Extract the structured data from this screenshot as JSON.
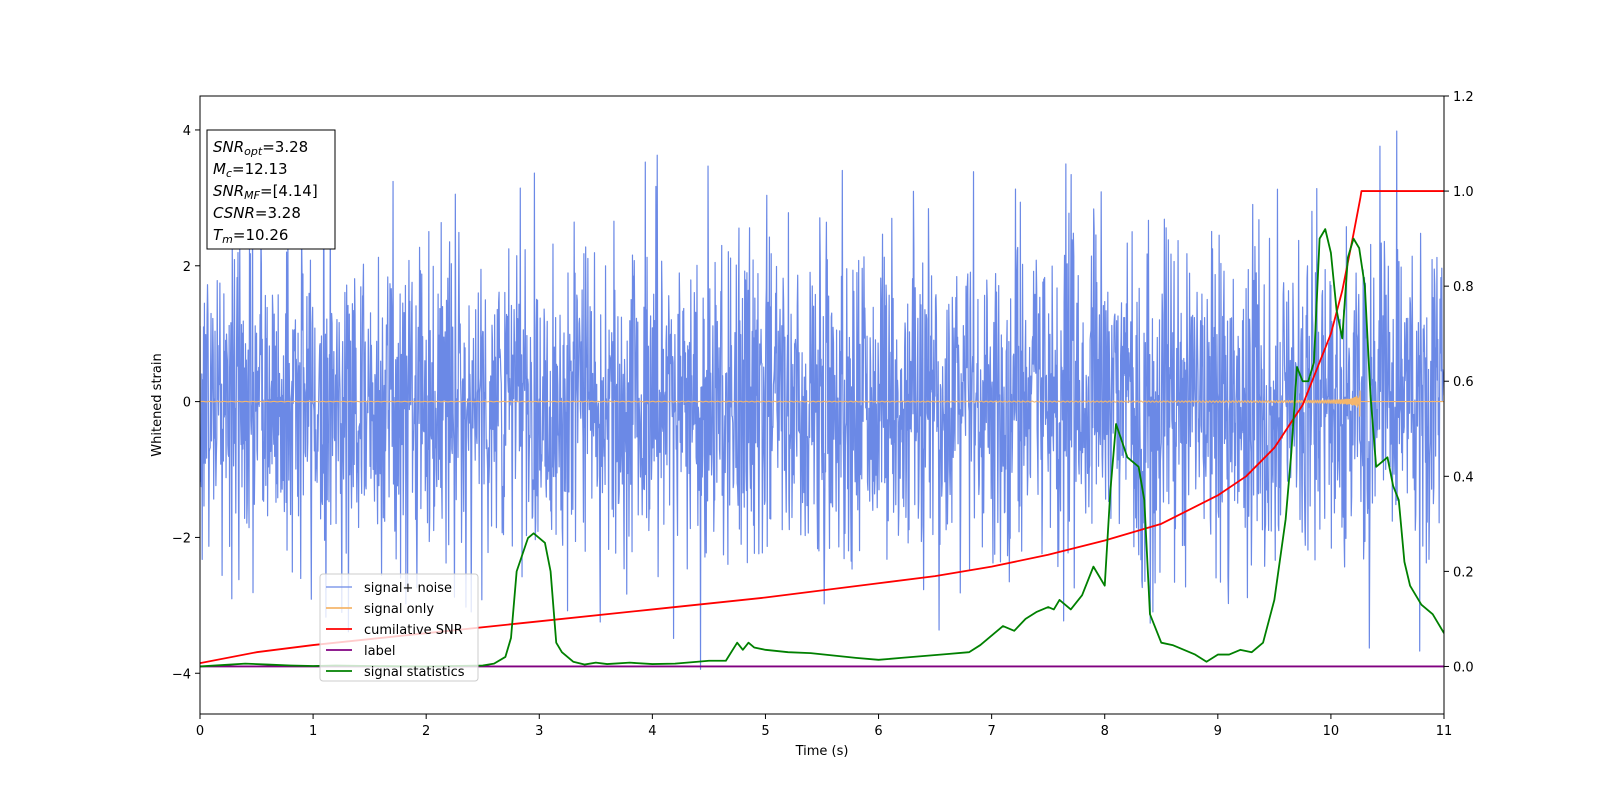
{
  "chart_data": {
    "type": "line",
    "xlabel": "Time (s)",
    "ylabel": "Whitened strain",
    "y2label": "",
    "xlim": [
      0,
      11
    ],
    "ylim": [
      -4.6,
      4.5
    ],
    "y2lim": [
      -0.1,
      1.2
    ],
    "x_ticks": [
      0,
      1,
      2,
      3,
      4,
      5,
      6,
      7,
      8,
      9,
      10,
      11
    ],
    "y_ticks": [
      -4,
      -2,
      0,
      2,
      4
    ],
    "y2_ticks": [
      0.0,
      0.2,
      0.4,
      0.6,
      0.8,
      1.0,
      1.2
    ],
    "y_tick_labels": [
      "−4",
      "−2",
      "0",
      "2",
      "4"
    ],
    "y2_tick_labels": [
      "0.0",
      "0.2",
      "0.4",
      "0.6",
      "0.8",
      "1.0",
      "1.2"
    ],
    "annotation": [
      {
        "symbol": "SNR",
        "sub": "opt",
        "value": "=3.28"
      },
      {
        "symbol": "M",
        "sub": "c",
        "value": "=12.13"
      },
      {
        "symbol": "SNR",
        "sub": "MF",
        "value": "=[4.14]"
      },
      {
        "symbol": "CSNR",
        "sub": "",
        "value": "=3.28"
      },
      {
        "symbol": "T",
        "sub": "m",
        "value": "=10.26"
      }
    ],
    "legend": {
      "placement": "lower-left",
      "entries": [
        {
          "label": "signal+ noise",
          "color": "#6b89e6"
        },
        {
          "label": "signal only",
          "color": "#f5b66b"
        },
        {
          "label": "cumilative SNR",
          "color": "#ff0000"
        },
        {
          "label": "label",
          "color": "#800080"
        },
        {
          "label": "signal statistics",
          "color": "#008000"
        }
      ]
    },
    "series": [
      {
        "name": "signal+ noise",
        "axis": "left",
        "color": "#6b89e6",
        "kind": "noise",
        "sampling_hz": 256,
        "amplitude_std": 1.2,
        "peak_max": 4.1,
        "peak_min": -4.15
      },
      {
        "name": "signal only",
        "axis": "left",
        "color": "#f5b66b",
        "kind": "chirp",
        "merger_time": 10.26,
        "peak_amplitude": 0.55,
        "trough_amplitude": -0.7
      },
      {
        "name": "cumilative SNR",
        "axis": "right",
        "color": "#ff0000",
        "x": [
          0,
          0.5,
          1,
          2,
          3,
          4,
          5,
          6,
          6.5,
          7,
          7.5,
          8,
          8.5,
          9,
          9.25,
          9.5,
          9.75,
          10,
          10.1,
          10.2,
          10.26,
          10.27,
          11
        ],
        "y": [
          0.007,
          0.03,
          0.045,
          0.07,
          0.095,
          0.12,
          0.145,
          0.175,
          0.19,
          0.21,
          0.235,
          0.265,
          0.3,
          0.36,
          0.4,
          0.46,
          0.55,
          0.7,
          0.79,
          0.91,
          0.985,
          1.0,
          1.0
        ]
      },
      {
        "name": "label",
        "axis": "right",
        "color": "#800080",
        "x": [
          0,
          11
        ],
        "y": [
          0.0,
          0.0
        ]
      },
      {
        "name": "signal statistics",
        "axis": "right",
        "color": "#008000",
        "x": [
          0,
          0.2,
          0.4,
          0.6,
          0.8,
          1.0,
          1.2,
          1.5,
          2.0,
          2.5,
          2.6,
          2.7,
          2.75,
          2.8,
          2.9,
          2.95,
          3.0,
          3.05,
          3.1,
          3.15,
          3.2,
          3.3,
          3.4,
          3.5,
          3.6,
          3.8,
          4.0,
          4.2,
          4.4,
          4.5,
          4.65,
          4.75,
          4.8,
          4.85,
          4.9,
          5.0,
          5.2,
          5.4,
          5.6,
          5.8,
          6.0,
          6.2,
          6.4,
          6.6,
          6.8,
          6.9,
          7.0,
          7.1,
          7.2,
          7.3,
          7.4,
          7.5,
          7.55,
          7.6,
          7.7,
          7.8,
          7.9,
          7.95,
          8.0,
          8.05,
          8.1,
          8.2,
          8.3,
          8.35,
          8.4,
          8.5,
          8.6,
          8.7,
          8.8,
          8.9,
          9.0,
          9.1,
          9.2,
          9.3,
          9.4,
          9.5,
          9.6,
          9.65,
          9.7,
          9.75,
          9.8,
          9.85,
          9.9,
          9.95,
          10.0,
          10.05,
          10.1,
          10.15,
          10.2,
          10.25,
          10.3,
          10.35,
          10.4,
          10.45,
          10.5,
          10.55,
          10.6,
          10.65,
          10.7,
          10.8,
          10.9,
          11.0
        ],
        "y": [
          0.0,
          0.003,
          0.006,
          0.004,
          0.002,
          0.001,
          0.002,
          0.001,
          0.0,
          0.002,
          0.006,
          0.02,
          0.06,
          0.2,
          0.27,
          0.28,
          0.27,
          0.26,
          0.2,
          0.05,
          0.03,
          0.01,
          0.004,
          0.008,
          0.005,
          0.008,
          0.005,
          0.006,
          0.01,
          0.012,
          0.012,
          0.05,
          0.035,
          0.05,
          0.04,
          0.035,
          0.03,
          0.028,
          0.023,
          0.018,
          0.014,
          0.018,
          0.022,
          0.026,
          0.03,
          0.045,
          0.065,
          0.085,
          0.075,
          0.1,
          0.115,
          0.125,
          0.12,
          0.14,
          0.12,
          0.15,
          0.21,
          0.19,
          0.17,
          0.37,
          0.51,
          0.44,
          0.42,
          0.35,
          0.11,
          0.05,
          0.045,
          0.035,
          0.025,
          0.01,
          0.025,
          0.025,
          0.035,
          0.03,
          0.05,
          0.14,
          0.31,
          0.45,
          0.63,
          0.6,
          0.6,
          0.64,
          0.9,
          0.92,
          0.87,
          0.75,
          0.69,
          0.86,
          0.9,
          0.88,
          0.8,
          0.57,
          0.42,
          0.43,
          0.44,
          0.38,
          0.35,
          0.22,
          0.17,
          0.13,
          0.11,
          0.07
        ]
      }
    ]
  }
}
